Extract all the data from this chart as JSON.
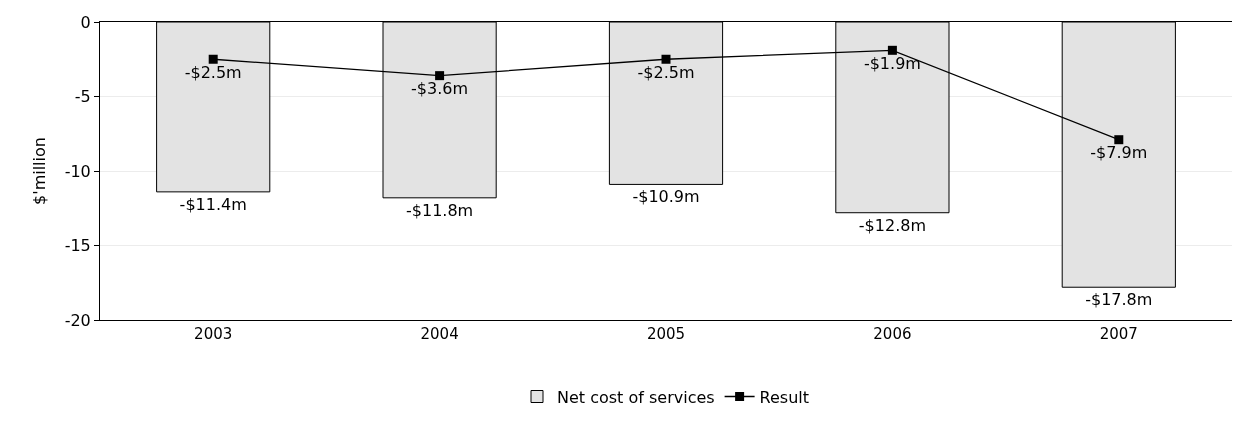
{
  "chart_data": {
    "type": "bar",
    "ylabel": "$'million",
    "categories": [
      "2003",
      "2004",
      "2005",
      "2006",
      "2007"
    ],
    "ylim": [
      -20,
      0
    ],
    "yticks": [
      -20,
      -15,
      -10,
      -5,
      0
    ],
    "grid": "y",
    "legend": "bottom",
    "marker": "square",
    "line_style": "solid",
    "series": [
      {
        "name": "Net cost of services",
        "color": "#e3e3e3",
        "values": [
          -11.4,
          -11.8,
          -10.9,
          -12.8,
          -17.8
        ],
        "value_labels": [
          "-$11.4m",
          "-$11.8m",
          "-$10.9m",
          "-$12.8m",
          "-$17.8m"
        ]
      },
      {
        "name": "Result",
        "type": "line",
        "color": "#000000",
        "values": [
          -2.5,
          -3.6,
          -2.5,
          -1.9,
          -7.9
        ],
        "value_labels": [
          "-$2.5m",
          "-$3.6m",
          "-$2.5m",
          "-$1.9m",
          "-$7.9m"
        ]
      }
    ]
  }
}
